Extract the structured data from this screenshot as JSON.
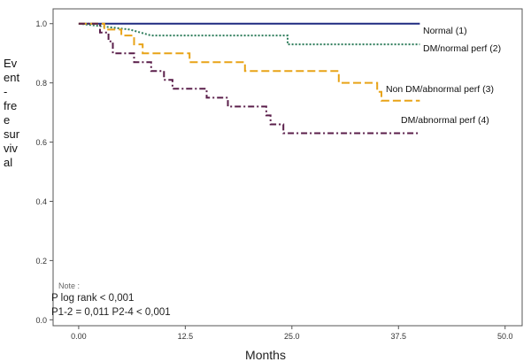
{
  "chart_data": {
    "type": "line",
    "xlabel": "Months",
    "ylabel_lines": [
      "Ev",
      "ent",
      "-",
      "fre",
      "e",
      "sur",
      "viv",
      "al"
    ],
    "xlim": [
      -3,
      52
    ],
    "ylim": [
      -0.02,
      1.05
    ],
    "xticks": [
      0,
      12.5,
      25,
      37.5,
      50
    ],
    "xtick_labels": [
      "0.00",
      "12.5",
      "25.0",
      "37.5",
      "50.0"
    ],
    "yticks": [
      0,
      0.2,
      0.4,
      0.6,
      0.8,
      1.0
    ],
    "ytick_labels": [
      "0.0",
      "0.2",
      "0.4",
      "0.6",
      "0.8",
      "1.0"
    ],
    "grid": false,
    "note_text": "Note :",
    "stats_lines": [
      "P log rank < 0,001",
      "P1-2 = 0,011      P2-4 < 0,001"
    ],
    "series": [
      {
        "name": "Normal (1)",
        "color": "#1f2a80",
        "dash": "solid",
        "points": [
          [
            0,
            1.0
          ],
          [
            40,
            1.0
          ]
        ]
      },
      {
        "name": "DM/normal perf (2)",
        "color": "#2e7d5b",
        "dash": "dotted",
        "points": [
          [
            0,
            1.0
          ],
          [
            6,
            0.98
          ],
          [
            8.5,
            0.96
          ],
          [
            24.5,
            0.96
          ],
          [
            24.5,
            0.93
          ],
          [
            40,
            0.93
          ]
        ]
      },
      {
        "name": "Non DM/abnormal perf (3)",
        "color": "#e8a317",
        "dash": "dashed",
        "points": [
          [
            0,
            1.0
          ],
          [
            3,
            1.0
          ],
          [
            3,
            0.98
          ],
          [
            5,
            0.98
          ],
          [
            5,
            0.96
          ],
          [
            6.5,
            0.96
          ],
          [
            6.5,
            0.93
          ],
          [
            7.5,
            0.93
          ],
          [
            7.5,
            0.9
          ],
          [
            13,
            0.9
          ],
          [
            13,
            0.87
          ],
          [
            19.5,
            0.87
          ],
          [
            19.5,
            0.84
          ],
          [
            30.5,
            0.84
          ],
          [
            30.5,
            0.8
          ],
          [
            35,
            0.8
          ],
          [
            35,
            0.77
          ],
          [
            35.5,
            0.77
          ],
          [
            35.5,
            0.74
          ],
          [
            40,
            0.74
          ]
        ]
      },
      {
        "name": "DM/abnormal perf (4)",
        "color": "#5a1e4a",
        "dash": "dashdot",
        "points": [
          [
            0,
            1.0
          ],
          [
            2.5,
            1.0
          ],
          [
            2.5,
            0.97
          ],
          [
            3.5,
            0.97
          ],
          [
            3.5,
            0.94
          ],
          [
            4,
            0.94
          ],
          [
            4,
            0.9
          ],
          [
            6.5,
            0.9
          ],
          [
            6.5,
            0.87
          ],
          [
            8.5,
            0.87
          ],
          [
            8.5,
            0.84
          ],
          [
            10,
            0.84
          ],
          [
            10,
            0.81
          ],
          [
            11,
            0.81
          ],
          [
            11,
            0.78
          ],
          [
            15,
            0.78
          ],
          [
            15,
            0.75
          ],
          [
            17.5,
            0.75
          ],
          [
            17.5,
            0.72
          ],
          [
            22,
            0.72
          ],
          [
            22,
            0.69
          ],
          [
            22.5,
            0.69
          ],
          [
            22.5,
            0.66
          ],
          [
            24,
            0.66
          ],
          [
            24,
            0.63
          ],
          [
            40,
            0.63
          ]
        ]
      }
    ]
  }
}
